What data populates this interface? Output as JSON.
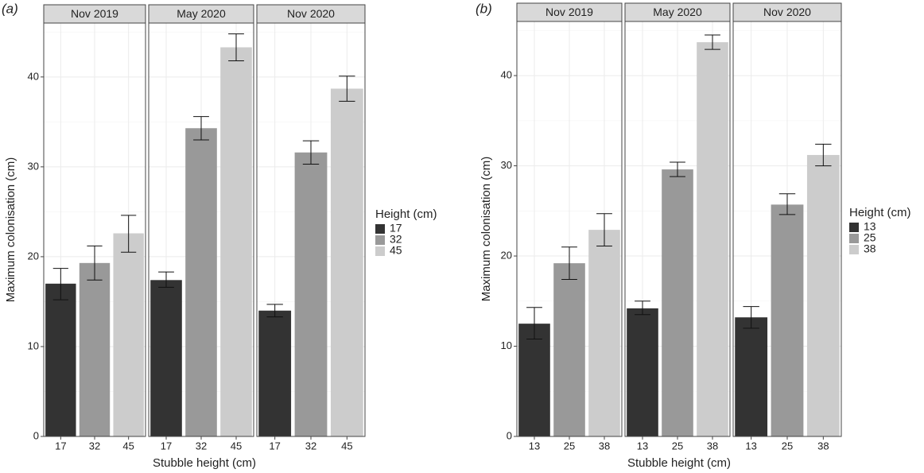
{
  "chart_data": [
    {
      "type": "bar",
      "panel_label": "(a)",
      "xlabel": "Stubble height (cm)",
      "ylabel": "Maximum colonisation (cm)",
      "ylim": [
        0,
        46
      ],
      "yticks": [
        0,
        10,
        20,
        30,
        40
      ],
      "grid": true,
      "legend_title": "Height (cm)",
      "legend_position": "right",
      "categories": [
        "17",
        "32",
        "45"
      ],
      "colors": [
        "#333333",
        "#999999",
        "#cccccc"
      ],
      "facets": [
        {
          "label": "Nov 2019",
          "values": [
            17.0,
            19.3,
            22.6
          ],
          "lower": [
            15.2,
            17.4,
            20.5
          ],
          "upper": [
            18.7,
            21.2,
            24.6
          ]
        },
        {
          "label": "May 2020",
          "values": [
            17.4,
            34.3,
            43.3
          ],
          "lower": [
            16.6,
            33.0,
            41.8
          ],
          "upper": [
            18.3,
            35.6,
            44.8
          ]
        },
        {
          "label": "Nov 2020",
          "values": [
            14.0,
            31.6,
            38.7
          ],
          "lower": [
            13.3,
            30.3,
            37.3
          ],
          "upper": [
            14.7,
            32.9,
            40.1
          ]
        }
      ]
    },
    {
      "type": "bar",
      "panel_label": "(b)",
      "xlabel": "Stubble height (cm)",
      "ylabel": "Maximum colonisation (cm)",
      "ylim": [
        0,
        46
      ],
      "yticks": [
        0,
        10,
        20,
        30,
        40
      ],
      "grid": true,
      "legend_title": "Height (cm)",
      "legend_position": "right",
      "categories": [
        "13",
        "25",
        "38"
      ],
      "colors": [
        "#333333",
        "#999999",
        "#cccccc"
      ],
      "facets": [
        {
          "label": "Nov 2019",
          "values": [
            12.5,
            19.2,
            22.9
          ],
          "lower": [
            10.8,
            17.4,
            21.1
          ],
          "upper": [
            14.3,
            21.0,
            24.7
          ]
        },
        {
          "label": "May 2020",
          "values": [
            14.2,
            29.6,
            43.7
          ],
          "lower": [
            13.5,
            28.8,
            42.9
          ],
          "upper": [
            15.0,
            30.4,
            44.5
          ]
        },
        {
          "label": "Nov 2020",
          "values": [
            13.2,
            25.7,
            31.2
          ],
          "lower": [
            12.0,
            24.6,
            30.0
          ],
          "upper": [
            14.4,
            26.9,
            32.4
          ]
        }
      ]
    }
  ]
}
